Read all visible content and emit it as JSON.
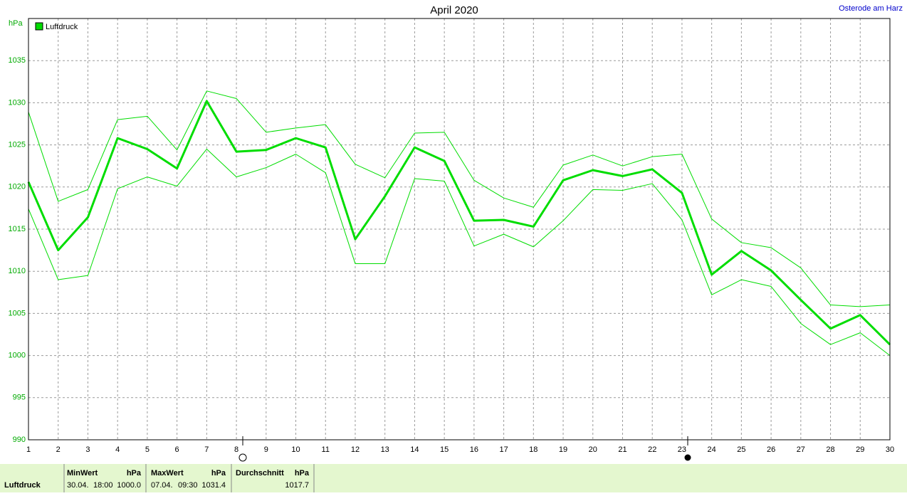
{
  "chart_data": {
    "type": "line",
    "title": "April 2020",
    "subtitle": "Osterode am Harz",
    "y_label": "hPa",
    "x": [
      1,
      2,
      3,
      4,
      5,
      6,
      7,
      8,
      9,
      10,
      11,
      12,
      13,
      14,
      15,
      16,
      17,
      18,
      19,
      20,
      21,
      22,
      23,
      24,
      25,
      26,
      27,
      28,
      29,
      30
    ],
    "xlim": [
      1,
      30
    ],
    "xticks": [
      1,
      2,
      3,
      4,
      5,
      6,
      7,
      8,
      9,
      10,
      11,
      12,
      13,
      14,
      15,
      16,
      17,
      18,
      19,
      20,
      21,
      22,
      23,
      24,
      25,
      26,
      27,
      28,
      29,
      30
    ],
    "ylim": [
      990,
      1040
    ],
    "yticks": [
      990,
      995,
      1000,
      1005,
      1010,
      1015,
      1020,
      1025,
      1030,
      1035
    ],
    "grid": true,
    "legend": "top-left",
    "series": [
      {
        "name": "Luftdruck",
        "color": "#00dd00",
        "linewidth": 3,
        "values": [
          1020.6,
          1012.5,
          1016.4,
          1025.8,
          1024.5,
          1022.2,
          1030.2,
          1024.2,
          1024.4,
          1025.8,
          1024.7,
          1013.8,
          1018.9,
          1024.7,
          1023.1,
          1016.0,
          1016.1,
          1015.3,
          1020.8,
          1022.0,
          1021.3,
          1022.1,
          1019.3,
          1009.6,
          1012.4,
          1010.1,
          1006.6,
          1003.2,
          1004.8,
          1001.3
        ]
      },
      {
        "color": "#00dd00",
        "linewidth": 1,
        "values": [
          1028.9,
          1018.3,
          1019.7,
          1028.0,
          1028.4,
          1024.4,
          1031.4,
          1030.5,
          1026.5,
          1027.0,
          1027.4,
          1022.7,
          1021.1,
          1026.4,
          1026.5,
          1020.8,
          1018.7,
          1017.6,
          1022.6,
          1023.8,
          1022.5,
          1023.6,
          1023.9,
          1016.2,
          1013.4,
          1012.8,
          1010.4,
          1006.0,
          1005.8,
          1006.0
        ]
      },
      {
        "color": "#00dd00",
        "linewidth": 1,
        "values": [
          1017.4,
          1009.0,
          1009.5,
          1019.8,
          1021.2,
          1020.1,
          1024.5,
          1021.2,
          1022.3,
          1023.9,
          1021.7,
          1010.9,
          1010.9,
          1021.0,
          1020.7,
          1013.0,
          1014.4,
          1012.9,
          1016.0,
          1019.7,
          1019.6,
          1020.4,
          1016.1,
          1007.2,
          1009.0,
          1008.2,
          1003.8,
          1001.3,
          1002.7,
          1000.0
        ]
      }
    ]
  },
  "stats": {
    "row_label": "Luftdruck",
    "min": {
      "header": "MinWert",
      "unit": "hPa",
      "date": "30.04.",
      "time": "18:00",
      "value": "1000.0"
    },
    "max": {
      "header": "MaxWert",
      "unit": "hPa",
      "date": "07.04.",
      "time": "09:30",
      "value": "1031.4"
    },
    "avg": {
      "header": "Durchschnitt",
      "unit": "hPa",
      "value": "1017.7"
    }
  }
}
